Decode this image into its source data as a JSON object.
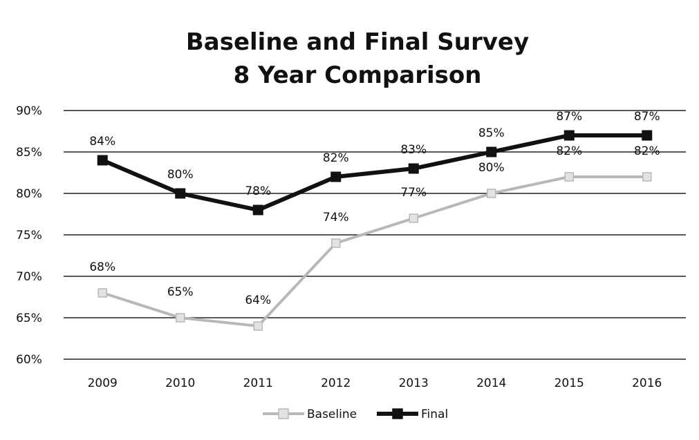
{
  "chart_data": {
    "type": "line",
    "title_lines": [
      "Baseline and Final Survey",
      "8 Year Comparison"
    ],
    "categories": [
      "2009",
      "2010",
      "2011",
      "2012",
      "2013",
      "2014",
      "2015",
      "2016"
    ],
    "series": [
      {
        "name": "Baseline",
        "values": [
          68,
          65,
          64,
          74,
          77,
          80,
          82,
          82
        ],
        "labels": [
          "68%",
          "65%",
          "64%",
          "74%",
          "77%",
          "80%",
          "82%",
          "82%"
        ],
        "color": "#b8b8b8"
      },
      {
        "name": "Final",
        "values": [
          84,
          80,
          78,
          82,
          83,
          85,
          87,
          87
        ],
        "labels": [
          "84%",
          "80%",
          "78%",
          "82%",
          "83%",
          "85%",
          "87%",
          "87%"
        ],
        "color": "#111111"
      }
    ],
    "y_ticks": [
      {
        "value": 60,
        "label": "60%"
      },
      {
        "value": 65,
        "label": "65%"
      },
      {
        "value": 70,
        "label": "70%"
      },
      {
        "value": 75,
        "label": "75%"
      },
      {
        "value": 80,
        "label": "80%"
      },
      {
        "value": 85,
        "label": "85%"
      },
      {
        "value": 90,
        "label": "90%"
      }
    ],
    "ylim": [
      60,
      90
    ],
    "grid": true,
    "legend_position": "bottom"
  }
}
